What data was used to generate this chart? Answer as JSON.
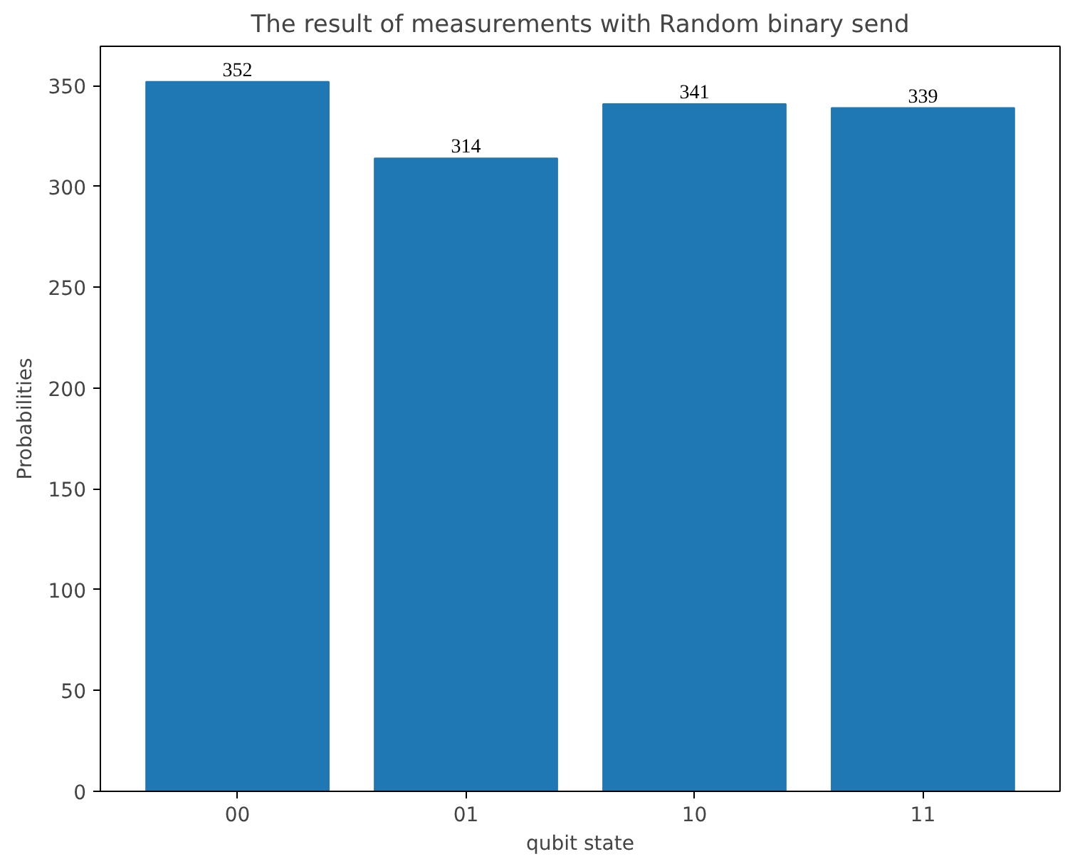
{
  "chart_data": {
    "type": "bar",
    "title": "The result of measurements with Random binary send",
    "xlabel": "qubit state",
    "ylabel": "Probabilities",
    "categories": [
      "00",
      "01",
      "10",
      "11"
    ],
    "values": [
      352,
      314,
      341,
      339
    ],
    "color": "#1f77b4",
    "data_labels": true,
    "ylim": [
      0,
      369.6
    ],
    "yticks": [
      0,
      50,
      100,
      150,
      200,
      250,
      300,
      350
    ],
    "grid": false
  }
}
